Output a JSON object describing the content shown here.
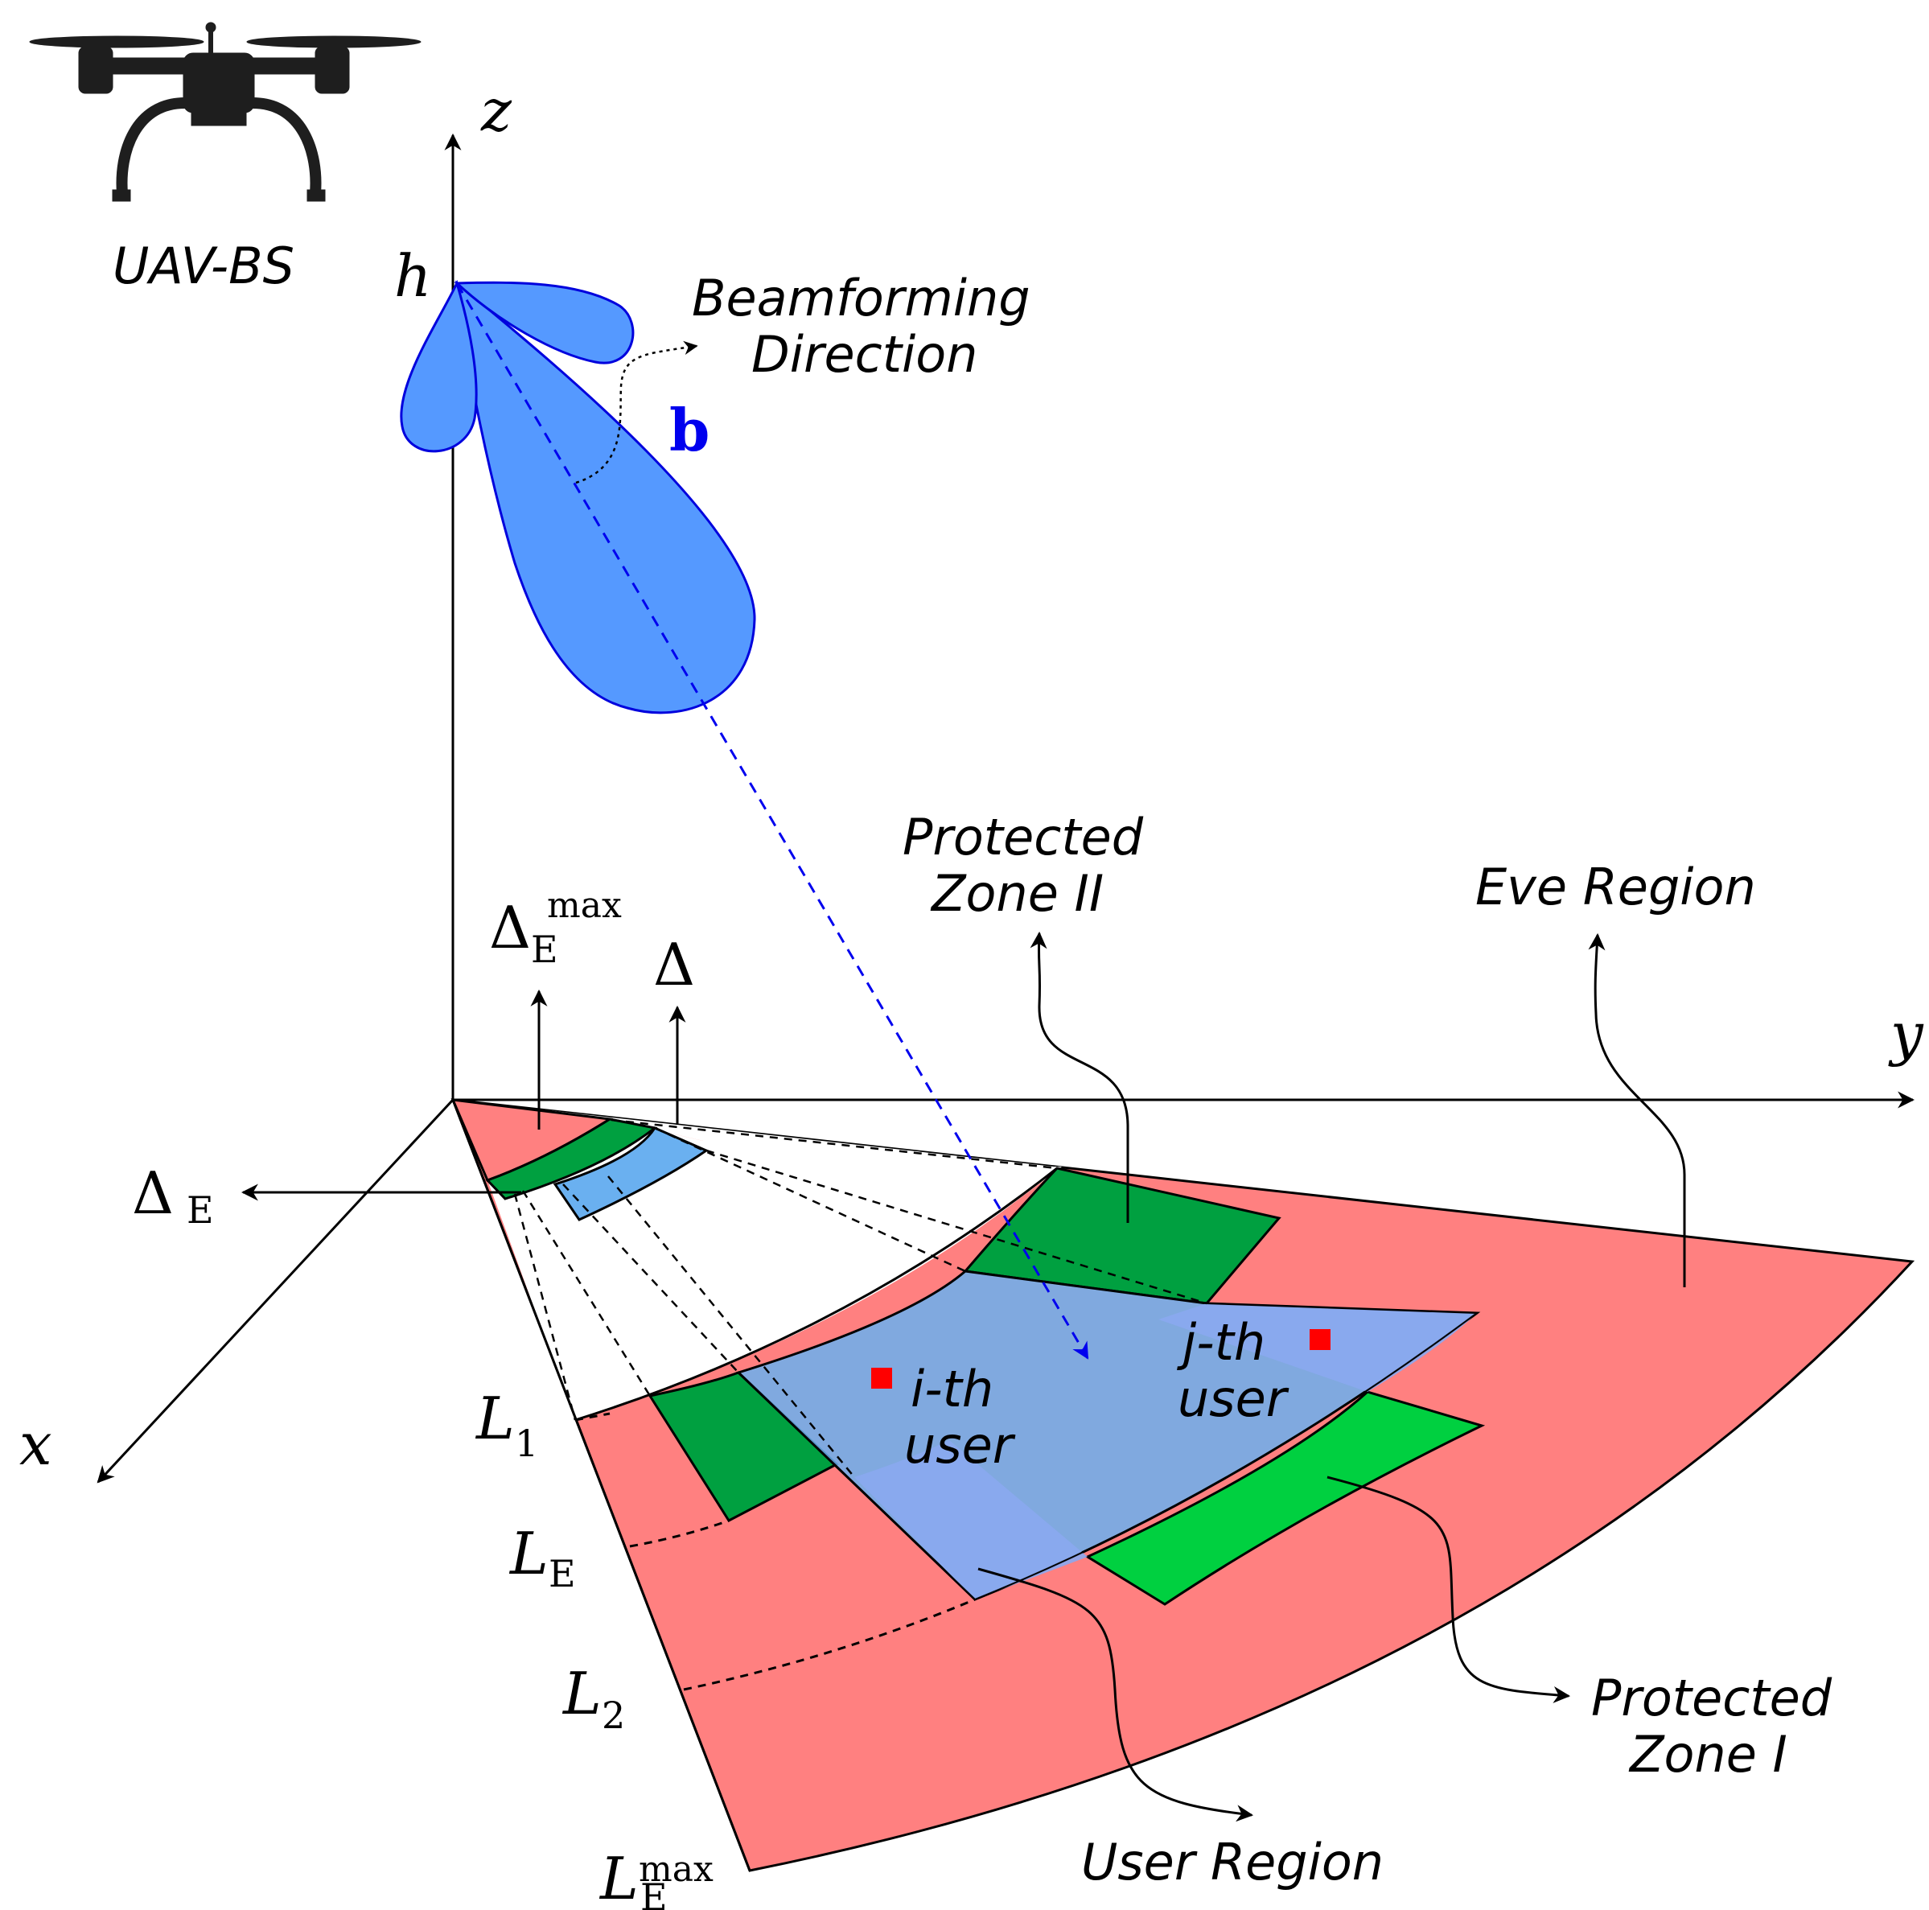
{
  "labels": {
    "uav": "UAV-BS",
    "beam_line1": "Beamforming",
    "beam_line2": "Direction",
    "beam_vector": "b",
    "pz2_line1": "Protected",
    "pz2_line2": "Zone II",
    "eve": "Eve Region",
    "pz1_line1": "Protected",
    "pz1_line2": "Zone I",
    "user_region": "User Region",
    "i_user_line1": "i-th",
    "i_user_line2": "user",
    "j_user_line1": "j-th",
    "j_user_line2": "user"
  },
  "axes": {
    "x": "x",
    "y": "y",
    "z": "z",
    "h": "h"
  },
  "symbols": {
    "delta": "Δ",
    "delta_e_max_base": "Δ",
    "delta_e_max_sub": "E",
    "delta_e_max_sup": "max",
    "delta_e_base": "Δ",
    "delta_e_sub": "E",
    "l1_base": "L",
    "l1_sub": "1",
    "le_base": "L",
    "le_sub": "E",
    "l2_base": "L",
    "l2_sub": "2",
    "lemax_base": "L",
    "lemax_sub": "E",
    "lemax_sup": "max"
  },
  "colors": {
    "eve_region": "#ff8080",
    "protected_zone_dark": "#00a040",
    "protected_zone_bright": "#00d040",
    "user_region": "#6ab0f0",
    "beam": "#5599ff",
    "beam_stroke": "#0000dd",
    "user_marker": "#ff0000"
  }
}
